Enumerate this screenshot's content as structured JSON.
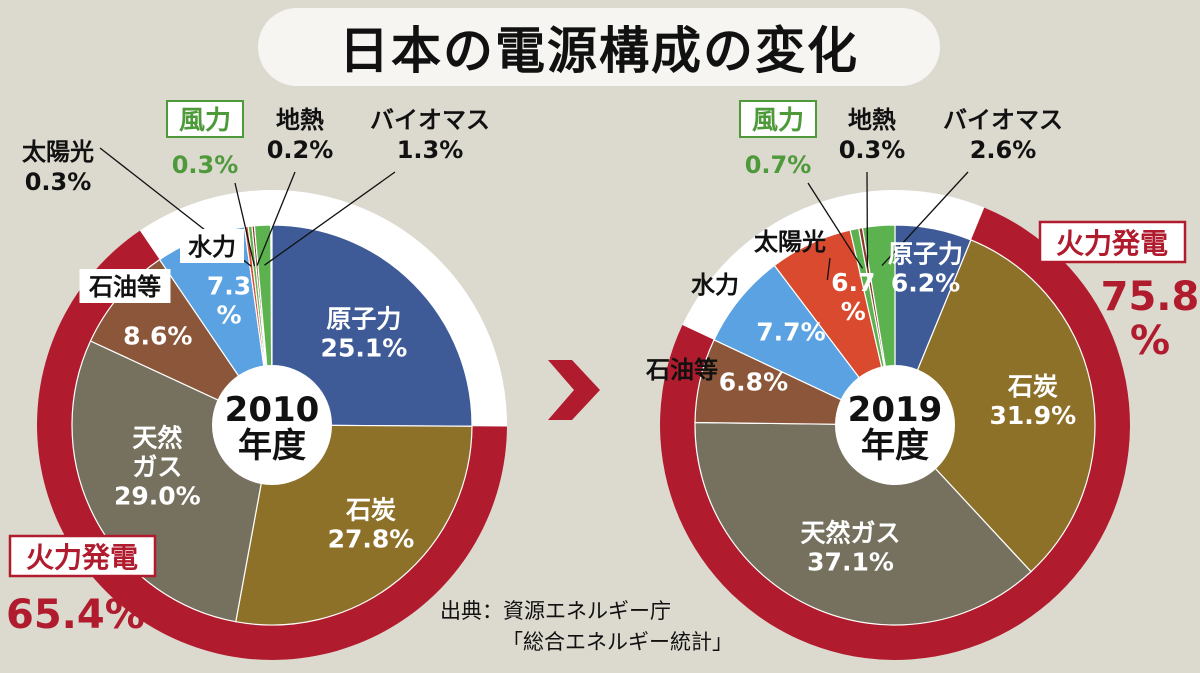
{
  "title": "日本の電源構成の変化",
  "source": {
    "line1": "出典：資源エネルギー庁",
    "line2": "「総合エネルギー統計」"
  },
  "colors": {
    "nuclear": "#3e5b97",
    "coal": "#8d7129",
    "gas": "#76715f",
    "oil": "#8b5639",
    "hydro": "#5aa2e2",
    "solar": "#d94a2f",
    "wind": "#5bb24e",
    "geothermal": "#8b3a2a",
    "biomass": "#5bb24e",
    "thermal_ring": "#b01c2e",
    "background": "#dcd9cf"
  },
  "chart_data": [
    {
      "type": "pie",
      "center_label": [
        "2010",
        "年度"
      ],
      "thermal": {
        "label": "火力発電",
        "value": "65.4%"
      },
      "slices": [
        {
          "name": "原子力",
          "value": 25.1,
          "label": "25.1%",
          "color": "#3e5b97"
        },
        {
          "name": "石炭",
          "value": 27.8,
          "label": "27.8%",
          "color": "#8d7129"
        },
        {
          "name": "天然ガス",
          "value": 29.0,
          "label": "29.0%",
          "color": "#76715f"
        },
        {
          "name": "石油等",
          "value": 8.6,
          "label": "8.6%",
          "color": "#8b5639"
        },
        {
          "name": "水力",
          "value": 7.3,
          "label": "7.3%",
          "color": "#5aa2e2"
        },
        {
          "name": "太陽光",
          "value": 0.3,
          "label": "0.3%",
          "color": "#d94a2f"
        },
        {
          "name": "風力",
          "value": 0.3,
          "label": "0.3%",
          "color": "#5bb24e"
        },
        {
          "name": "地熱",
          "value": 0.2,
          "label": "0.2%",
          "color": "#8b3a2a"
        },
        {
          "name": "バイオマス",
          "value": 1.3,
          "label": "1.3%",
          "color": "#5bb24e"
        }
      ]
    },
    {
      "type": "pie",
      "center_label": [
        "2019",
        "年度"
      ],
      "thermal": {
        "label": "火力発電",
        "value": "75.8%"
      },
      "slices": [
        {
          "name": "原子力",
          "value": 6.2,
          "label": "6.2%",
          "color": "#3e5b97"
        },
        {
          "name": "石炭",
          "value": 31.9,
          "label": "31.9%",
          "color": "#8d7129"
        },
        {
          "name": "天然ガス",
          "value": 37.1,
          "label": "37.1%",
          "color": "#76715f"
        },
        {
          "name": "石油等",
          "value": 6.8,
          "label": "6.8%",
          "color": "#8b5639"
        },
        {
          "name": "水力",
          "value": 7.7,
          "label": "7.7%",
          "color": "#5aa2e2"
        },
        {
          "name": "太陽光",
          "value": 6.7,
          "label": "6.7%",
          "color": "#d94a2f"
        },
        {
          "name": "風力",
          "value": 0.7,
          "label": "0.7%",
          "color": "#5bb24e"
        },
        {
          "name": "地熱",
          "value": 0.3,
          "label": "0.3%",
          "color": "#8b3a2a"
        },
        {
          "name": "バイオマス",
          "value": 2.6,
          "label": "2.6%",
          "color": "#5bb24e"
        }
      ]
    }
  ]
}
